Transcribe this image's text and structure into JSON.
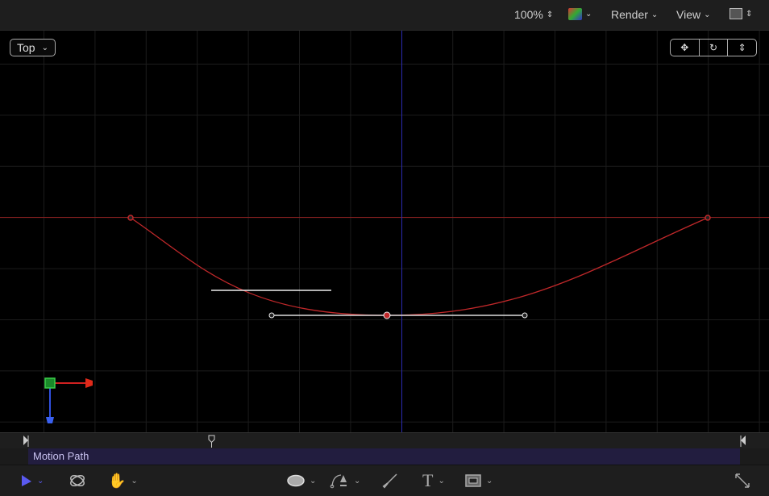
{
  "topbar": {
    "zoom": "100%",
    "color_menu_icon": "color-channels-icon",
    "render_label": "Render",
    "view_label": "View",
    "layout_icon": "window-layout-icon"
  },
  "canvas": {
    "camera_view": "Top",
    "controls": [
      "pan-icon",
      "orbit-icon",
      "dolly-icon"
    ],
    "colors": {
      "path": "#c0282a",
      "horizon": "#8a1f1f",
      "axis_v": "#2a2ab0",
      "grid": "#1c1c1c"
    }
  },
  "timeline": {
    "track_label": "Motion Path",
    "track_color": "#221d3f"
  },
  "toolbar": {
    "tools": [
      "select-arrow-icon",
      "3d-transform-icon",
      "pan-hand-icon",
      "ellipse-shape-icon",
      "bezier-pen-icon",
      "paint-brush-icon",
      "text-tool-icon",
      "mask-rectangle-icon",
      "fullscreen-expand-icon"
    ],
    "text_glyph": "T"
  }
}
